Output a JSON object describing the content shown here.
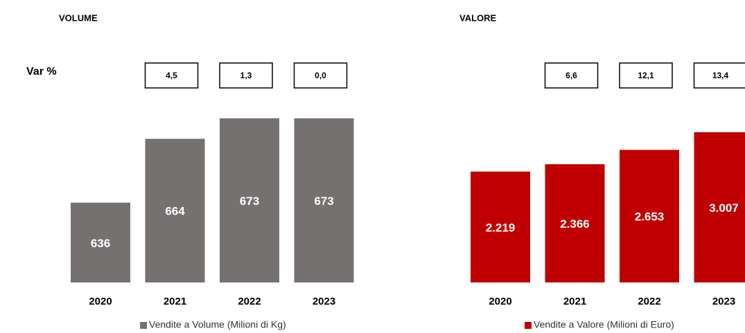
{
  "chart_data": [
    {
      "type": "bar",
      "title": "VOLUME",
      "categories": [
        "2020",
        "2021",
        "2022",
        "2023"
      ],
      "values": [
        636,
        664,
        673,
        673
      ],
      "color": "#767171",
      "legend": "Vendite a Volume (Milioni di Kg)",
      "ylim": [
        601,
        676
      ],
      "var_pct": {
        "label": "Var %",
        "values": [
          4.5,
          1.3,
          0.0
        ],
        "value_labels": [
          "4,5",
          "1,3",
          "0,0"
        ]
      }
    },
    {
      "type": "bar",
      "title": "VALORE",
      "categories": [
        "2020",
        "2021",
        "2022",
        "2023"
      ],
      "values": [
        2219,
        2366,
        2653,
        3007
      ],
      "value_labels": [
        "2.219",
        "2.366",
        "2.653",
        "3.007"
      ],
      "color": "#c00000",
      "legend": "Vendite a Valore (Milioni di Euro)",
      "ylim": [
        0,
        3200
      ],
      "var_pct": {
        "values": [
          6.6,
          12.1,
          13.4
        ],
        "value_labels": [
          "6,6",
          "12,1",
          "13,4"
        ]
      }
    }
  ]
}
